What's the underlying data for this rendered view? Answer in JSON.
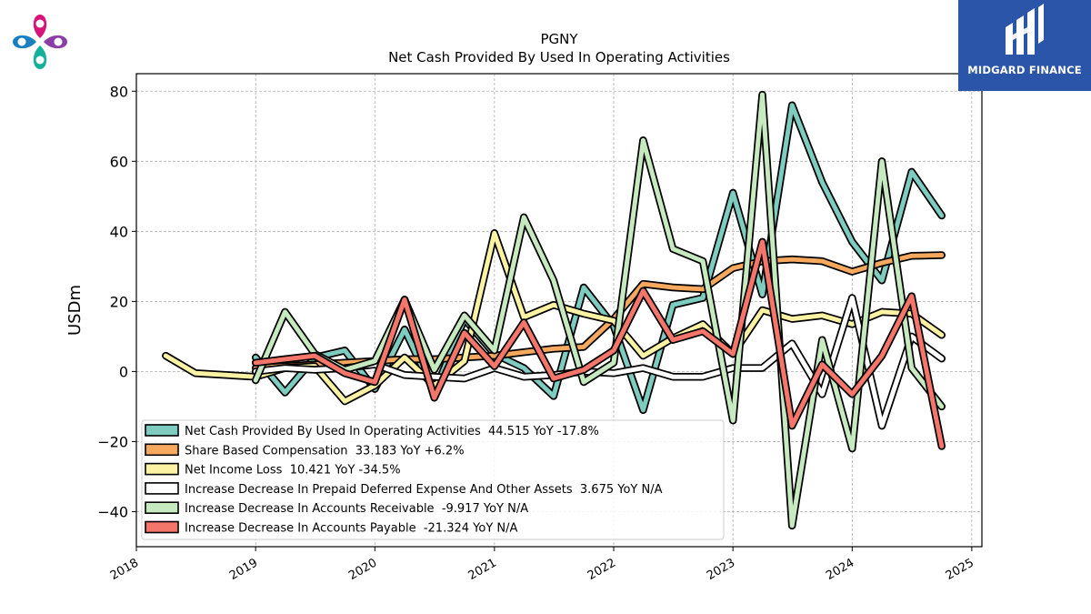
{
  "company_logo": {
    "name": "company-logo",
    "colors": [
      "#d6157a",
      "#1a7fc1",
      "#8b3fa6",
      "#13b09a"
    ]
  },
  "brand": {
    "name": "MIDGARD FINANCE",
    "background": "#2b55a8",
    "mark": "stylized-M-logo"
  },
  "chart_data": {
    "type": "line",
    "title": "PGNY",
    "subtitle": "Net Cash Provided By Used In Operating Activities",
    "xlabel": "",
    "ylabel": "USDm",
    "xlim": [
      "2018-01-01",
      "2025-02-01"
    ],
    "ylim": [
      -50,
      85
    ],
    "x_ticks": [
      "2018",
      "2019",
      "2020",
      "2021",
      "2022",
      "2023",
      "2024",
      "2025"
    ],
    "y_ticks": [
      -40,
      -20,
      0,
      20,
      40,
      60,
      80
    ],
    "grid": true,
    "legend_position": "lower-left",
    "series": [
      {
        "name": "Net Cash Provided By Used In Operating Activities  44.515 YoY -17.8%",
        "color": "#7ecbc0",
        "x": [
          "2019-01-01",
          "2019-04-01",
          "2019-07-01",
          "2019-10-01",
          "2020-01-01",
          "2020-04-01",
          "2020-07-01",
          "2020-10-01",
          "2021-01-01",
          "2021-04-01",
          "2021-07-01",
          "2021-10-01",
          "2022-01-01",
          "2022-04-01",
          "2022-07-01",
          "2022-10-01",
          "2023-01-01",
          "2023-04-01",
          "2023-07-01",
          "2023-10-01",
          "2024-01-01",
          "2024-04-01",
          "2024-07-01",
          "2024-10-01"
        ],
        "y": [
          4,
          -6,
          4,
          6,
          -5,
          12,
          -6,
          15,
          5,
          1,
          -7,
          24,
          13,
          -11,
          19,
          21,
          51,
          22,
          76,
          54,
          37,
          26,
          57,
          44.5
        ]
      },
      {
        "name": "Share Based Compensation  33.183 YoY +6.2%",
        "color": "#f6a85f",
        "x": [
          "2019-01-01",
          "2019-04-01",
          "2019-07-01",
          "2019-10-01",
          "2020-01-01",
          "2020-04-01",
          "2020-07-01",
          "2020-10-01",
          "2021-01-01",
          "2021-04-01",
          "2021-07-01",
          "2021-10-01",
          "2022-01-01",
          "2022-04-01",
          "2022-07-01",
          "2022-10-01",
          "2023-01-01",
          "2023-04-01",
          "2023-07-01",
          "2023-10-01",
          "2024-01-01",
          "2024-04-01",
          "2024-07-01",
          "2024-10-01"
        ],
        "y": [
          1,
          1.5,
          2,
          2.5,
          3,
          3.5,
          3.5,
          4,
          4.5,
          5.5,
          6.5,
          7,
          15,
          25,
          24,
          23.5,
          29.5,
          31.5,
          32,
          31.5,
          28.5,
          31,
          33,
          33.2
        ]
      },
      {
        "name": "Net Income Loss  10.421 YoY -34.5%",
        "color": "#fbf2a3",
        "x": [
          "2018-04-01",
          "2018-07-01",
          "2019-01-01",
          "2019-04-01",
          "2019-07-01",
          "2019-10-01",
          "2020-01-01",
          "2020-04-01",
          "2020-07-01",
          "2020-10-01",
          "2021-01-01",
          "2021-04-01",
          "2021-07-01",
          "2021-10-01",
          "2022-01-01",
          "2022-04-01",
          "2022-07-01",
          "2022-10-01",
          "2023-01-01",
          "2023-04-01",
          "2023-07-01",
          "2023-10-01",
          "2024-01-01",
          "2024-04-01",
          "2024-07-01",
          "2024-10-01"
        ],
        "y": [
          4.5,
          -0.5,
          -1.5,
          1,
          1.5,
          -8.5,
          -4,
          4,
          -4,
          3,
          39.5,
          15.5,
          19,
          16.5,
          14.5,
          4.5,
          9.5,
          13.5,
          5,
          17.5,
          15,
          16,
          13.5,
          17,
          16.5,
          10.4
        ]
      },
      {
        "name": "Increase Decrease In Prepaid Deferred Expense And Other Assets  3.675 YoY N/A",
        "color": "#ffffff",
        "x": [
          "2019-01-01",
          "2019-04-01",
          "2019-07-01",
          "2019-10-01",
          "2020-01-01",
          "2020-04-01",
          "2020-07-01",
          "2020-10-01",
          "2021-01-01",
          "2021-04-01",
          "2021-07-01",
          "2021-10-01",
          "2022-01-01",
          "2022-04-01",
          "2022-07-01",
          "2022-10-01",
          "2023-01-01",
          "2023-04-01",
          "2023-07-01",
          "2023-10-01",
          "2024-01-01",
          "2024-04-01",
          "2024-07-01",
          "2024-10-01"
        ],
        "y": [
          0,
          1,
          0.5,
          1,
          2,
          -1,
          -1.5,
          -2,
          1,
          -1.5,
          -1,
          0,
          -0.5,
          1,
          -1.5,
          -1.5,
          1,
          1,
          8,
          -6.5,
          21,
          -15.5,
          10,
          3.7
        ]
      },
      {
        "name": "Increase Decrease In Accounts Receivable  -9.917 YoY N/A",
        "color": "#c7e9c0",
        "x": [
          "2019-01-01",
          "2019-04-01",
          "2019-07-01",
          "2019-10-01",
          "2020-01-01",
          "2020-04-01",
          "2020-07-01",
          "2020-10-01",
          "2021-01-01",
          "2021-04-01",
          "2021-07-01",
          "2021-10-01",
          "2022-01-01",
          "2022-04-01",
          "2022-07-01",
          "2022-10-01",
          "2023-01-01",
          "2023-04-01",
          "2023-07-01",
          "2023-10-01",
          "2024-01-01",
          "2024-04-01",
          "2024-07-01",
          "2024-10-01"
        ],
        "y": [
          -2.5,
          17,
          5,
          0.5,
          3,
          20.5,
          0.5,
          16,
          6,
          44,
          26,
          -3,
          2.5,
          66,
          35,
          31.5,
          -14,
          79,
          -44,
          9,
          -22,
          60,
          1,
          -10
        ]
      },
      {
        "name": "Increase Decrease In Accounts Payable  -21.324 YoY N/A",
        "color": "#f4766a",
        "x": [
          "2019-01-01",
          "2019-04-01",
          "2019-07-01",
          "2019-10-01",
          "2020-01-01",
          "2020-04-01",
          "2020-07-01",
          "2020-10-01",
          "2021-01-01",
          "2021-04-01",
          "2021-07-01",
          "2021-10-01",
          "2022-01-01",
          "2022-04-01",
          "2022-07-01",
          "2022-10-01",
          "2023-01-01",
          "2023-04-01",
          "2023-07-01",
          "2023-10-01",
          "2024-01-01",
          "2024-04-01",
          "2024-07-01",
          "2024-10-01"
        ],
        "y": [
          2.5,
          3.5,
          4.5,
          -0.5,
          -3,
          20.5,
          -7.5,
          11,
          1.5,
          14,
          -2,
          0.5,
          6,
          23,
          9,
          11.5,
          5,
          37,
          -15.5,
          2,
          -6.5,
          4.5,
          21.5,
          -21.3
        ]
      }
    ]
  }
}
